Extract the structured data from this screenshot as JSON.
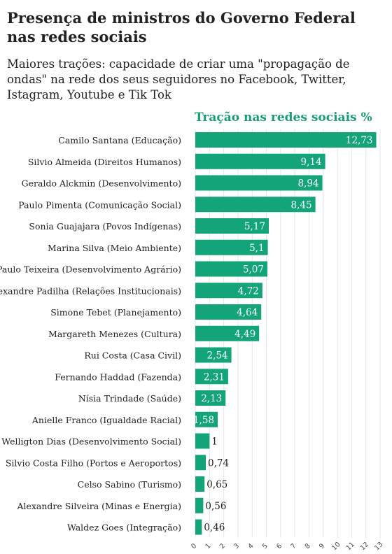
{
  "title": "Presença de ministros do Governo Federal nas redes sociais",
  "subtitle": "Maiores trações: capacidade de criar uma \"propagação de ondas\" na rede dos seus seguidores no Facebook, Twitter, Istagram, Youtube e Tik Tok",
  "colors": {
    "bar": "#13a479",
    "text": "#222222",
    "accent": "#1a9e77",
    "grid": "#e6e6e6"
  },
  "chart_data": {
    "type": "bar",
    "orientation": "horizontal",
    "title": "Tração nas redes sociais %",
    "categories": [
      "Camilo Santana (Educação)",
      "Silvio Almeida (Direitos Humanos)",
      "Geraldo Alckmin (Desenvolvimento)",
      "Paulo Pimenta (Comunicação Social)",
      "Sonia Guajajara (Povos Indígenas)",
      "Marina Silva (Meio Ambiente)",
      "Paulo Teixeira (Desenvolvimento Agrário)",
      "Alexandre Padilha (Relações Institucionais)",
      "Simone Tebet (Planejamento)",
      "Margareth Menezes (Cultura)",
      "Rui Costa (Casa Civil)",
      "Fernando Haddad (Fazenda)",
      "Nísia Trindade (Saúde)",
      "Anielle Franco (Igualdade Racial)",
      "Welligton Dias (Desenvolvimento Social)",
      "Silvio Costa Filho (Portos e Aeroportos)",
      "Celso Sabino (Turismo)",
      "Alexandre Silveira (Minas e Energia)",
      "Waldez Goes (Integração)"
    ],
    "values": [
      12.73,
      9.14,
      8.94,
      8.45,
      5.17,
      5.1,
      5.07,
      4.72,
      4.64,
      4.49,
      2.54,
      2.31,
      2.13,
      1.58,
      1,
      0.74,
      0.65,
      0.56,
      0.46
    ],
    "value_labels": [
      "12,73",
      "9,14",
      "8,94",
      "8,45",
      "5,17",
      "5,1",
      "5,07",
      "4,72",
      "4,64",
      "4,49",
      "2,54",
      "2,31",
      "2,13",
      "1,58",
      "1",
      "0,74",
      "0,65",
      "0,56",
      "0,46"
    ],
    "xlim": [
      0,
      13
    ],
    "xticks": [
      0,
      1,
      2,
      3,
      4,
      5,
      6,
      7,
      8,
      9,
      10,
      11,
      12,
      13
    ],
    "grid": true
  }
}
